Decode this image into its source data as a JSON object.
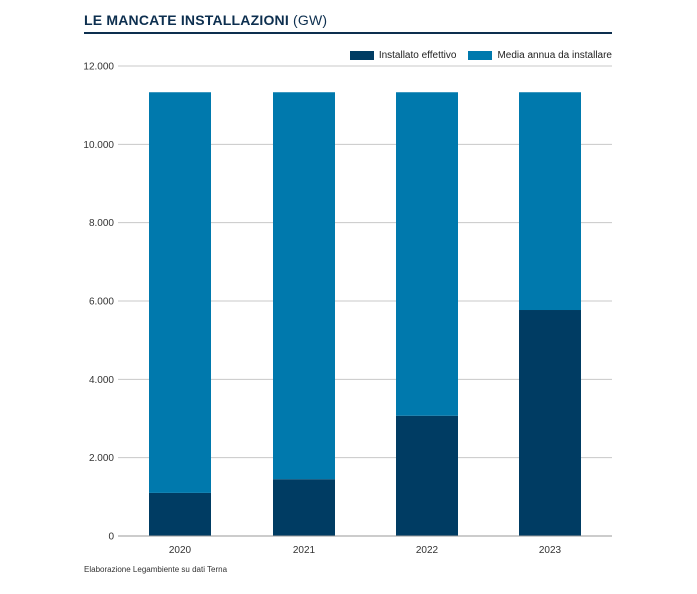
{
  "header": {
    "title": "LE MANCATE INSTALLAZIONI",
    "unit": "(GW)"
  },
  "colors": {
    "installed": "#003c63",
    "to_install": "#0079ad",
    "grid": "#c8c8c8",
    "title": "#0d2f4f"
  },
  "source": "Elaborazione Legambiente su dati Terna",
  "chart_data": {
    "type": "bar",
    "stacked": true,
    "categories": [
      "2020",
      "2021",
      "2022",
      "2023"
    ],
    "series": [
      {
        "name": "Installato effettivo",
        "values": [
          1.1,
          1.45,
          3.07,
          5.77
        ]
      },
      {
        "name": "Media annua da installare",
        "values": [
          10.23,
          9.88,
          8.26,
          5.56
        ]
      }
    ],
    "ylim": [
      0,
      12
    ],
    "yticks": [
      0,
      2,
      4,
      6,
      8,
      10,
      12
    ],
    "ytick_labels": [
      "0",
      "2.000",
      "4.000",
      "6.000",
      "8.000",
      "10.000",
      "12.000"
    ],
    "grid": true,
    "legend": "top-right"
  }
}
